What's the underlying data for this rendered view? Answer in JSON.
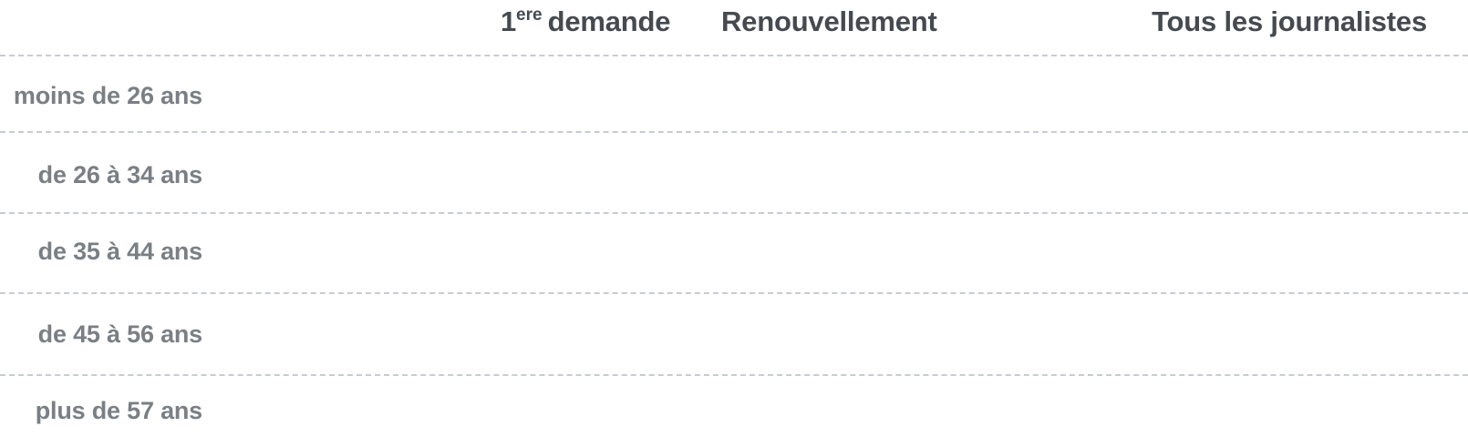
{
  "table": {
    "columns": [
      {
        "number": "1",
        "sup": "ere",
        "label": "demande"
      },
      {
        "label": "Renouvellement"
      },
      {
        "label": "Tous les journalistes"
      }
    ],
    "rows": [
      {
        "label": "moins de 26 ans"
      },
      {
        "label": "de 26 à 34 ans"
      },
      {
        "label": "de 35 à 44 ans"
      },
      {
        "label": "de 45 à 56 ans"
      },
      {
        "label": "plus de 57 ans"
      }
    ],
    "colors": {
      "header_text": "#454a50",
      "row_text": "#7a7f85",
      "rule": "#c8ccd0"
    }
  }
}
